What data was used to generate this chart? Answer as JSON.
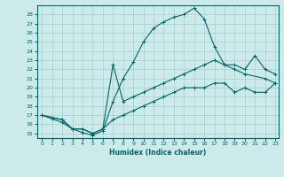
{
  "xlabel": "Humidex (Indice chaleur)",
  "bg_color": "#cceaea",
  "grid_color": "#aacccc",
  "line_color": "#006666",
  "xlim": [
    -0.5,
    23.3
  ],
  "ylim": [
    14.5,
    29.0
  ],
  "xticks": [
    0,
    1,
    2,
    3,
    4,
    5,
    6,
    7,
    8,
    9,
    10,
    11,
    12,
    13,
    14,
    15,
    16,
    17,
    18,
    19,
    20,
    21,
    22,
    23
  ],
  "yticks": [
    15,
    16,
    17,
    18,
    19,
    20,
    21,
    22,
    23,
    24,
    25,
    26,
    27,
    28
  ],
  "curve1_x": [
    0,
    1,
    2,
    3,
    4,
    5,
    6,
    7,
    8,
    9,
    10,
    11,
    12,
    13,
    14,
    15,
    16,
    17,
    18,
    19,
    20,
    22,
    23
  ],
  "curve1_y": [
    17,
    16.6,
    16.2,
    15.5,
    15.1,
    14.8,
    15.3,
    18.5,
    21.0,
    22.8,
    25.0,
    26.5,
    27.2,
    27.7,
    28.0,
    28.7,
    27.5,
    24.5,
    22.5,
    22.0,
    21.5,
    21.0,
    20.5
  ],
  "curve2_x": [
    0,
    2,
    3,
    4,
    5,
    6,
    7,
    8,
    9,
    10,
    11,
    12,
    13,
    14,
    15,
    16,
    17,
    18,
    19,
    20,
    21,
    22,
    23
  ],
  "curve2_y": [
    17,
    16.5,
    15.5,
    15.5,
    15.0,
    15.5,
    22.5,
    18.5,
    19.0,
    19.5,
    20.0,
    20.5,
    21.0,
    21.5,
    22.0,
    22.5,
    23.0,
    22.5,
    22.5,
    22.0,
    23.5,
    22.0,
    21.5
  ],
  "curve3_x": [
    0,
    2,
    3,
    4,
    5,
    6,
    7,
    8,
    9,
    10,
    11,
    12,
    13,
    14,
    15,
    16,
    17,
    18,
    19,
    20,
    21,
    22,
    23
  ],
  "curve3_y": [
    17,
    16.5,
    15.5,
    15.5,
    15.0,
    15.5,
    16.5,
    17.0,
    17.5,
    18.0,
    18.5,
    19.0,
    19.5,
    20.0,
    20.0,
    20.0,
    20.5,
    20.5,
    19.5,
    20.0,
    19.5,
    19.5,
    20.5
  ]
}
